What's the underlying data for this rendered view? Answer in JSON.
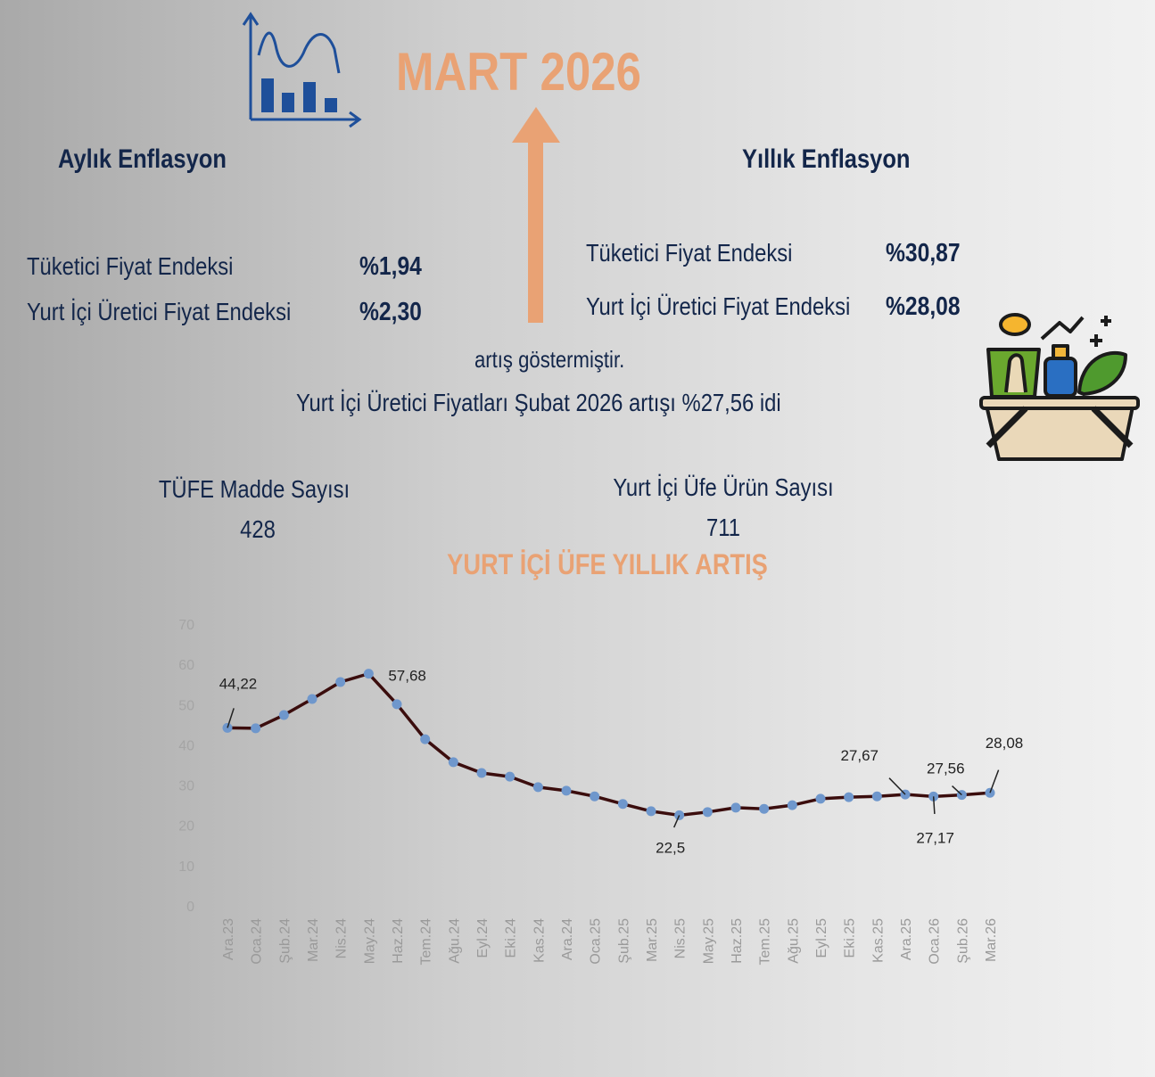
{
  "title": "MART 2026",
  "monthly": {
    "heading": "Aylık Enflasyon",
    "rows": [
      {
        "label": "Tüketici Fiyat Endeksi",
        "value": "%1,94"
      },
      {
        "label": "Yurt İçi Üretici Fiyat Endeksi",
        "value": "%2,30"
      }
    ]
  },
  "annual": {
    "heading": "Yıllık Enflasyon",
    "rows": [
      {
        "label": "Tüketici Fiyat Endeksi",
        "value": "%30,87"
      },
      {
        "label": "Yurt İçi Üretici Fiyat Endeksi",
        "value": "%28,08"
      }
    ]
  },
  "note": "artış göstermiştir.",
  "note2": "Yurt İçi Üretici Fiyatları Şubat 2026 artışı %27,56 idi",
  "counts": [
    {
      "label": "TÜFE Madde Sayısı",
      "value": 428
    },
    {
      "label": "Yurt İçi Üfe Ürün Sayısı",
      "value": 711
    }
  ],
  "chart_data": {
    "type": "line",
    "title": "YURT İÇİ ÜFE  YILLIK ARTIŞ",
    "categories": [
      "Ara.23",
      "Oca.24",
      "Şub.24",
      "Mar.24",
      "Nis.24",
      "May.24",
      "Haz.24",
      "Tem.24",
      "Ağu.24",
      "Eyl.24",
      "Eki.24",
      "Kas.24",
      "Ara.24",
      "Oca.25",
      "Şub.25",
      "Mar.25",
      "Nis.25",
      "May.25",
      "Haz.25",
      "Tem.25",
      "Ağu.25",
      "Eyl.25",
      "Eki.25",
      "Kas.25",
      "Ara.25",
      "Oca.26",
      "Şub.26",
      "Mar.26"
    ],
    "values": [
      44.22,
      44.1,
      47.4,
      51.4,
      55.6,
      57.68,
      50.1,
      41.4,
      35.7,
      33.0,
      32.1,
      29.5,
      28.6,
      27.2,
      25.3,
      23.5,
      22.5,
      23.3,
      24.4,
      24.1,
      25.0,
      26.6,
      27.0,
      27.2,
      27.67,
      27.17,
      27.56,
      28.08
    ],
    "value_labels": [
      "44,22",
      null,
      null,
      null,
      null,
      "57,68",
      null,
      null,
      null,
      null,
      null,
      null,
      null,
      null,
      null,
      null,
      "22,5",
      null,
      null,
      null,
      null,
      null,
      null,
      null,
      "27,67",
      "27,17",
      "27,56",
      "28,08"
    ],
    "color": "#3b0d0d",
    "marker_color": "#6f97cc",
    "ylim": [
      0,
      70
    ],
    "yticks": [
      0,
      10,
      20,
      30,
      40,
      50,
      60,
      70
    ],
    "grid": false
  }
}
